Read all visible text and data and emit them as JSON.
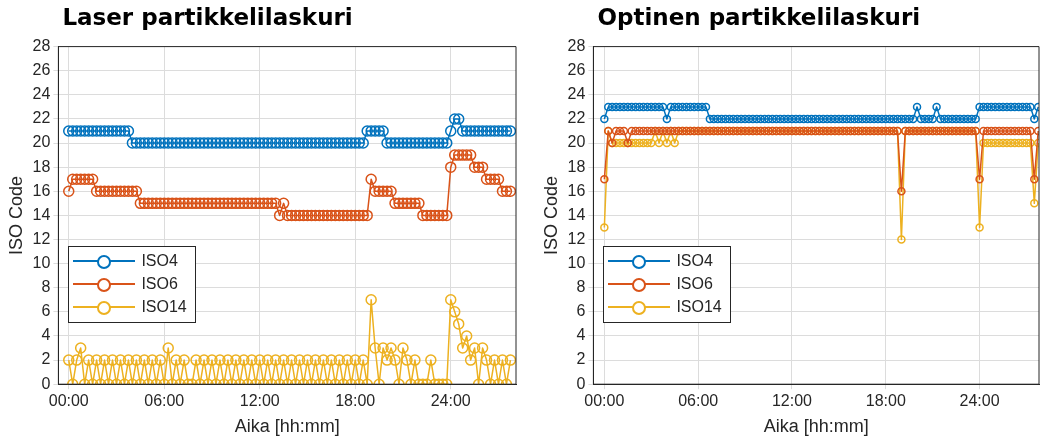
{
  "chart_data": [
    {
      "type": "line",
      "title": "Laser partikkelilaskuri",
      "xlabel": "Aika [hh:mm]",
      "ylabel": "ISO Code",
      "x": [
        0,
        0.25,
        0.5,
        0.75,
        1,
        1.25,
        1.5,
        1.75,
        2,
        2.25,
        2.5,
        2.75,
        3,
        3.25,
        3.5,
        3.75,
        4,
        4.25,
        4.5,
        4.75,
        5,
        5.25,
        5.5,
        5.75,
        6,
        6.25,
        6.5,
        6.75,
        7,
        7.25,
        7.5,
        7.75,
        8,
        8.25,
        8.5,
        8.75,
        9,
        9.25,
        9.5,
        9.75,
        10,
        10.25,
        10.5,
        10.75,
        11,
        11.25,
        11.5,
        11.75,
        12,
        12.25,
        12.5,
        12.75,
        13,
        13.25,
        13.5,
        13.75,
        14,
        14.25,
        14.5,
        14.75,
        15,
        15.25,
        15.5,
        15.75,
        16,
        16.25,
        16.5,
        16.75,
        17,
        17.25,
        17.5,
        17.75,
        18,
        18.25,
        18.5,
        18.75,
        19,
        19.25,
        19.5,
        19.75,
        20,
        20.25,
        20.5,
        20.75,
        21,
        21.25,
        21.5,
        21.75,
        22,
        22.25,
        22.5,
        22.75,
        23,
        23.25,
        23.5,
        23.75,
        24,
        24.25,
        24.5,
        24.75,
        25,
        25.25,
        25.5,
        25.75,
        26,
        26.25,
        26.5,
        26.75,
        27,
        27.25,
        27.5,
        27.75
      ],
      "series": [
        {
          "name": "ISO4",
          "color": "#0072bd",
          "values": [
            21,
            21,
            21,
            21,
            21,
            21,
            21,
            21,
            21,
            21,
            21,
            21,
            21,
            21,
            21,
            21,
            20,
            20,
            20,
            20,
            20,
            20,
            20,
            20,
            20,
            20,
            20,
            20,
            20,
            20,
            20,
            20,
            20,
            20,
            20,
            20,
            20,
            20,
            20,
            20,
            20,
            20,
            20,
            20,
            20,
            20,
            20,
            20,
            20,
            20,
            20,
            20,
            20,
            20,
            20,
            20,
            20,
            20,
            20,
            20,
            20,
            20,
            20,
            20,
            20,
            20,
            20,
            20,
            20,
            20,
            20,
            20,
            20,
            20,
            20,
            21,
            21,
            21,
            21,
            21,
            20,
            20,
            20,
            20,
            20,
            20,
            20,
            20,
            20,
            20,
            20,
            20,
            20,
            20,
            20,
            20,
            21,
            22,
            22,
            21,
            21,
            21,
            21,
            21,
            21,
            21,
            21,
            21,
            21,
            21,
            21,
            21
          ]
        },
        {
          "name": "ISO6",
          "color": "#d95319",
          "values": [
            16,
            17,
            17,
            17,
            17,
            17,
            17,
            16,
            16,
            16,
            16,
            16,
            16,
            16,
            16,
            16,
            16,
            16,
            15,
            15,
            15,
            15,
            15,
            15,
            15,
            15,
            15,
            15,
            15,
            15,
            15,
            15,
            15,
            15,
            15,
            15,
            15,
            15,
            15,
            15,
            15,
            15,
            15,
            15,
            15,
            15,
            15,
            15,
            15,
            15,
            15,
            15,
            15,
            14,
            15,
            14,
            14,
            14,
            14,
            14,
            14,
            14,
            14,
            14,
            14,
            14,
            14,
            14,
            14,
            14,
            14,
            14,
            14,
            14,
            14,
            14,
            17,
            16,
            16,
            16,
            16,
            16,
            15,
            15,
            15,
            15,
            15,
            15,
            15,
            14,
            14,
            14,
            14,
            14,
            14,
            14,
            18,
            19,
            19,
            19,
            19,
            19,
            18,
            18,
            18,
            17,
            17,
            17,
            17,
            16,
            16,
            16
          ]
        },
        {
          "name": "ISO14",
          "color": "#edb120",
          "values": [
            2,
            0,
            2,
            3,
            0,
            2,
            0,
            2,
            0,
            2,
            0,
            2,
            0,
            2,
            0,
            2,
            0,
            2,
            0,
            2,
            0,
            2,
            0,
            2,
            0,
            3,
            0,
            2,
            0,
            2,
            0,
            0,
            2,
            0,
            2,
            0,
            2,
            0,
            2,
            0,
            2,
            0,
            2,
            0,
            2,
            0,
            2,
            0,
            2,
            0,
            2,
            0,
            2,
            0,
            2,
            0,
            2,
            0,
            2,
            0,
            2,
            0,
            2,
            0,
            2,
            0,
            2,
            0,
            2,
            0,
            2,
            0,
            2,
            0,
            2,
            0,
            7,
            3,
            0,
            3,
            2,
            3,
            2,
            0,
            3,
            2,
            0,
            2,
            0,
            0,
            0,
            2,
            0,
            0,
            0,
            0,
            7,
            6,
            5,
            3,
            4,
            2,
            3,
            0,
            3,
            2,
            0,
            2,
            0,
            2,
            0,
            2
          ]
        }
      ],
      "xlim": [
        -0.65,
        28.1
      ],
      "xticks": [
        {
          "value": 0,
          "label": "00:00"
        },
        {
          "value": 6,
          "label": "06:00"
        },
        {
          "value": 12,
          "label": "12:00"
        },
        {
          "value": 18,
          "label": "18:00"
        },
        {
          "value": 24,
          "label": "24:00"
        }
      ],
      "ylim": [
        0,
        28
      ],
      "yticks": [
        0,
        2,
        4,
        6,
        8,
        10,
        12,
        14,
        16,
        18,
        20,
        22,
        24,
        26,
        28
      ],
      "grid": true,
      "legend": "bottom left",
      "marker": "circle",
      "line_style": "solid"
    },
    {
      "type": "line",
      "title": "Optinen partikkelilaskuri",
      "xlabel": "Aika [hh:mm]",
      "ylabel": "ISO Code",
      "x": [
        0,
        0.25,
        0.5,
        0.75,
        1,
        1.25,
        1.5,
        1.75,
        2,
        2.25,
        2.5,
        2.75,
        3,
        3.25,
        3.5,
        3.75,
        4,
        4.25,
        4.5,
        4.75,
        5,
        5.25,
        5.5,
        5.75,
        6,
        6.25,
        6.5,
        6.75,
        7,
        7.25,
        7.5,
        7.75,
        8,
        8.25,
        8.5,
        8.75,
        9,
        9.25,
        9.5,
        9.75,
        10,
        10.25,
        10.5,
        10.75,
        11,
        11.25,
        11.5,
        11.75,
        12,
        12.25,
        12.5,
        12.75,
        13,
        13.25,
        13.5,
        13.75,
        14,
        14.25,
        14.5,
        14.75,
        15,
        15.25,
        15.5,
        15.75,
        16,
        16.25,
        16.5,
        16.75,
        17,
        17.25,
        17.5,
        17.75,
        18,
        18.25,
        18.5,
        18.75,
        19,
        19.25,
        19.5,
        19.75,
        20,
        20.25,
        20.5,
        20.75,
        21,
        21.25,
        21.5,
        21.75,
        22,
        22.25,
        22.5,
        22.75,
        23,
        23.25,
        23.5,
        23.75,
        24,
        24.25,
        24.5,
        24.75,
        25,
        25.25,
        25.5,
        25.75,
        26,
        26.25,
        26.5,
        26.75,
        27,
        27.25,
        27.5,
        27.75
      ],
      "series": [
        {
          "name": "ISO4",
          "color": "#0072bd",
          "values": [
            22,
            23,
            23,
            23,
            23,
            23,
            23,
            23,
            23,
            23,
            23,
            23,
            23,
            23,
            23,
            23,
            22,
            23,
            23,
            23,
            23,
            23,
            23,
            23,
            23,
            23,
            23,
            22,
            22,
            22,
            22,
            22,
            22,
            22,
            22,
            22,
            22,
            22,
            22,
            22,
            22,
            22,
            22,
            22,
            22,
            22,
            22,
            22,
            22,
            22,
            22,
            22,
            22,
            22,
            22,
            22,
            22,
            22,
            22,
            22,
            22,
            22,
            22,
            22,
            22,
            22,
            22,
            22,
            22,
            22,
            22,
            22,
            22,
            22,
            22,
            22,
            22,
            22,
            22,
            22,
            23,
            22,
            22,
            22,
            22,
            23,
            22,
            22,
            22,
            22,
            22,
            22,
            22,
            22,
            22,
            22,
            23,
            23,
            23,
            23,
            23,
            23,
            23,
            23,
            23,
            23,
            23,
            23,
            23,
            23,
            22,
            23
          ]
        },
        {
          "name": "ISO6",
          "color": "#d95319",
          "values": [
            17,
            21,
            20,
            21,
            21,
            21,
            20,
            21,
            21,
            21,
            21,
            21,
            21,
            21,
            21,
            21,
            21,
            21,
            21,
            21,
            21,
            21,
            21,
            21,
            21,
            21,
            21,
            21,
            21,
            21,
            21,
            21,
            21,
            21,
            21,
            21,
            21,
            21,
            21,
            21,
            21,
            21,
            21,
            21,
            21,
            21,
            21,
            21,
            21,
            21,
            21,
            21,
            21,
            21,
            21,
            21,
            21,
            21,
            21,
            21,
            21,
            21,
            21,
            21,
            21,
            21,
            21,
            21,
            21,
            21,
            21,
            21,
            21,
            21,
            21,
            21,
            16,
            21,
            21,
            21,
            21,
            21,
            21,
            21,
            21,
            21,
            21,
            21,
            21,
            21,
            21,
            21,
            21,
            21,
            21,
            21,
            17,
            21,
            21,
            21,
            21,
            21,
            21,
            21,
            21,
            21,
            21,
            21,
            21,
            21,
            17,
            21
          ]
        },
        {
          "name": "ISO14",
          "color": "#edb120",
          "values": [
            13,
            21,
            20,
            20,
            20,
            20,
            20,
            20,
            20,
            20,
            20,
            20,
            20,
            21,
            20,
            21,
            20,
            21,
            20,
            21,
            21,
            21,
            21,
            21,
            21,
            21,
            21,
            21,
            21,
            21,
            21,
            21,
            21,
            21,
            21,
            21,
            21,
            21,
            21,
            21,
            21,
            21,
            21,
            21,
            21,
            21,
            21,
            21,
            21,
            21,
            21,
            21,
            21,
            21,
            21,
            21,
            21,
            21,
            21,
            21,
            21,
            21,
            21,
            21,
            21,
            21,
            21,
            21,
            21,
            21,
            21,
            21,
            21,
            21,
            21,
            21,
            12,
            21,
            21,
            21,
            21,
            21,
            21,
            21,
            21,
            21,
            21,
            21,
            21,
            21,
            21,
            21,
            21,
            21,
            21,
            21,
            13,
            20,
            20,
            20,
            20,
            20,
            20,
            20,
            20,
            20,
            20,
            20,
            20,
            20,
            15,
            20
          ]
        }
      ],
      "xlim": [
        -0.7,
        27.8
      ],
      "xticks": [
        {
          "value": 0,
          "label": "00:00"
        },
        {
          "value": 6,
          "label": "06:00"
        },
        {
          "value": 12,
          "label": "12:00"
        },
        {
          "value": 18,
          "label": "18:00"
        },
        {
          "value": 24,
          "label": "24:00"
        }
      ],
      "ylim": [
        0,
        28
      ],
      "yticks": [
        0,
        2,
        4,
        6,
        8,
        10,
        12,
        14,
        16,
        18,
        20,
        22,
        24,
        26,
        28
      ],
      "grid": true,
      "legend": "bottom left",
      "marker": "circle",
      "line_style": "solid"
    }
  ]
}
